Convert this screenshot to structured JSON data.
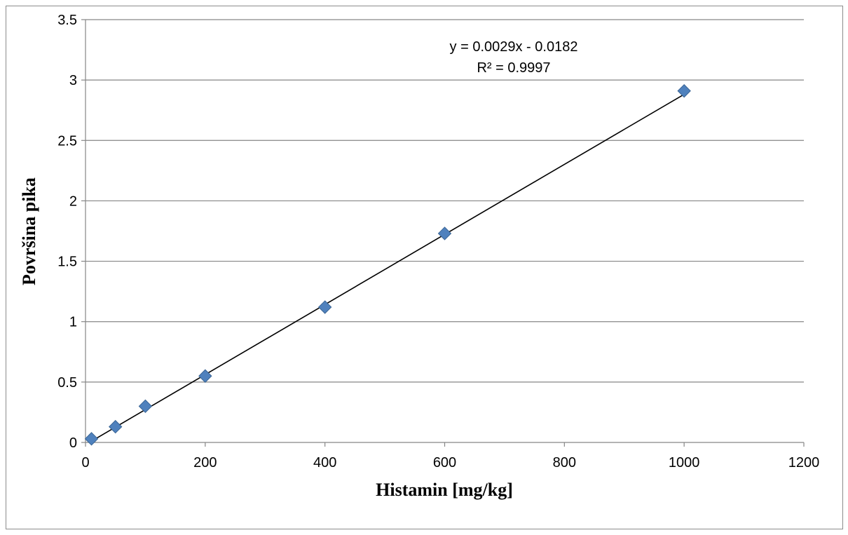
{
  "chart_data": {
    "type": "scatter",
    "xlabel": "Histamin [mg/kg]",
    "ylabel": "Površina pika",
    "xlim": [
      0,
      1200
    ],
    "ylim": [
      0,
      3.5
    ],
    "x_ticks": [
      "0",
      "200",
      "400",
      "600",
      "800",
      "1000",
      "1200"
    ],
    "y_ticks": [
      "0",
      "0.5",
      "1",
      "1.5",
      "2",
      "2.5",
      "3",
      "3.5"
    ],
    "grid": "horizontal",
    "marker_color": "#4F81BD",
    "trendline_color": "#000000",
    "series": [
      {
        "x": [
          10,
          50,
          100,
          200,
          400,
          600,
          1000
        ],
        "y": [
          0.03,
          0.13,
          0.3,
          0.55,
          1.12,
          1.73,
          2.91
        ]
      }
    ],
    "trendline": {
      "type": "linear",
      "slope": 0.0029,
      "intercept": -0.0182,
      "x_range": [
        10,
        1000
      ],
      "equation_label": "y = 0.0029x - 0.0182",
      "r2_label": "R² = 0.9997"
    }
  }
}
